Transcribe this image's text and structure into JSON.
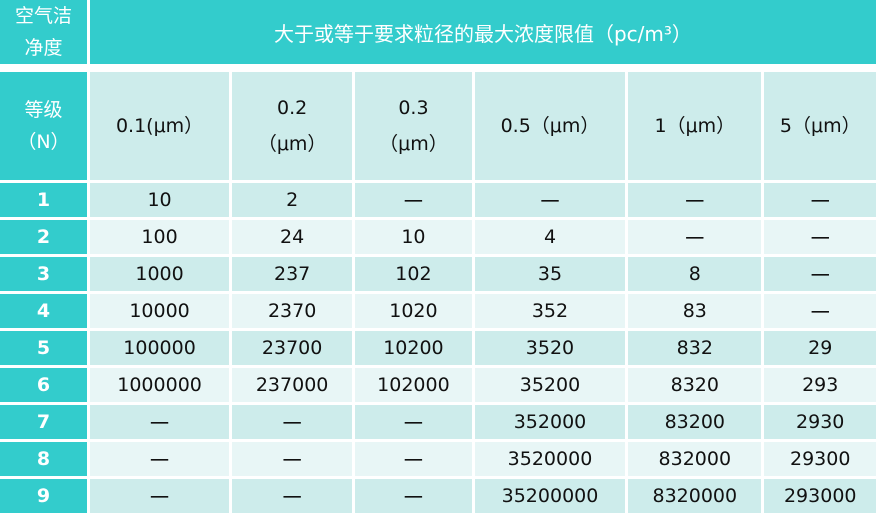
{
  "colors": {
    "header": "#33cccc",
    "row_dark": "#cdeceb",
    "row_light": "#e8f6f6"
  },
  "header": {
    "class_label": "空气洁净度",
    "concentration_title": "大于或等于要求粒径的最大浓度限值（pc/m³）",
    "grade_label": "等级（N）",
    "sizes": [
      "0.1(μm）",
      "0.2（μm）",
      "0.3（μm）",
      "0.5（μm）",
      "1（μm）",
      "5（μm）"
    ]
  },
  "rows": [
    {
      "grade": "1",
      "values": [
        "10",
        "2",
        "一",
        "一",
        "一",
        "一"
      ]
    },
    {
      "grade": "2",
      "values": [
        "100",
        "24",
        "10",
        "4",
        "一",
        "一"
      ]
    },
    {
      "grade": "3",
      "values": [
        "1000",
        "237",
        "102",
        "35",
        "8",
        "一"
      ]
    },
    {
      "grade": "4",
      "values": [
        "10000",
        "2370",
        "1020",
        "352",
        "83",
        "一"
      ]
    },
    {
      "grade": "5",
      "values": [
        "100000",
        "23700",
        "10200",
        "3520",
        "832",
        "29"
      ]
    },
    {
      "grade": "6",
      "values": [
        "1000000",
        "237000",
        "102000",
        "35200",
        "8320",
        "293"
      ]
    },
    {
      "grade": "7",
      "values": [
        "一",
        "一",
        "一",
        "352000",
        "83200",
        "2930"
      ]
    },
    {
      "grade": "8",
      "values": [
        "一",
        "一",
        "一",
        "3520000",
        "832000",
        "29300"
      ]
    },
    {
      "grade": "9",
      "values": [
        "一",
        "一",
        "一",
        "35200000",
        "8320000",
        "293000"
      ]
    }
  ]
}
